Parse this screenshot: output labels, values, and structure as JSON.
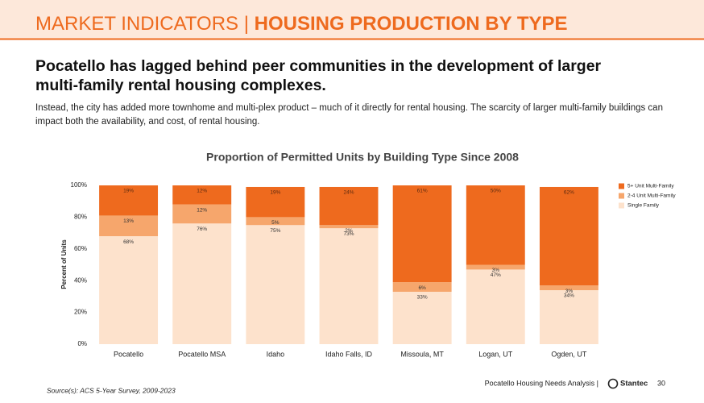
{
  "header": {
    "section": "MARKET INDICATORS | ",
    "title": "HOUSING PRODUCTION BY TYPE"
  },
  "headline": "Pocatello has lagged behind peer communities in the development of larger multi-family rental housing complexes.",
  "body": "Instead, the city has added more townhome and multi-plex product – much of it directly for rental housing. The scarcity of larger multi-family buildings can impact both the availability, and cost, of rental housing.",
  "chart_data": {
    "type": "stacked_bar",
    "title": "Proportion of Permitted Units by Building Type Since 2008",
    "y_label": "Percent of Units",
    "categories": [
      "Pocatello",
      "Pocatello MSA",
      "Idaho",
      "Idaho Falls, ID",
      "Missoula, MT",
      "Logan, UT",
      "Ogden, UT"
    ],
    "series": [
      {
        "name": "5+ Unit Multi-Family",
        "color": "#ee6a1e",
        "values": [
          19,
          12,
          19,
          24,
          61,
          50,
          62
        ],
        "value_labels": [
          "19%",
          "12%",
          "19%",
          "24%",
          "61%",
          "50%",
          "62%"
        ]
      },
      {
        "name": "2-4 Unit Multi-Family",
        "color": "#f6a66c",
        "values": [
          13,
          12,
          5,
          2,
          6,
          3,
          3
        ],
        "value_labels": [
          "13%",
          "12%",
          "5%",
          "2%",
          "6%",
          "3%",
          "3%"
        ]
      },
      {
        "name": "Single Family",
        "color": "#fde2cc",
        "values": [
          68,
          76,
          75,
          73,
          33,
          47,
          34
        ],
        "value_labels": [
          "68%",
          "76%",
          "75%",
          "73%",
          "33%",
          "47%",
          "34%"
        ]
      }
    ],
    "ylim": [
      0,
      100
    ],
    "yticks": [
      {
        "value": 0,
        "label": "0%"
      },
      {
        "value": 20,
        "label": "20%"
      },
      {
        "value": 40,
        "label": "40%"
      },
      {
        "value": 60,
        "label": "60%"
      },
      {
        "value": 80,
        "label": "80%"
      },
      {
        "value": 100,
        "label": "100%"
      }
    ],
    "grid": false,
    "legend": "right"
  },
  "footer": {
    "source": "Source(s): ACS 5-Year Survey, 2009-2023",
    "report": "Pocatello Housing Needs Analysis  |",
    "brand": "Stantec",
    "page": "30"
  }
}
